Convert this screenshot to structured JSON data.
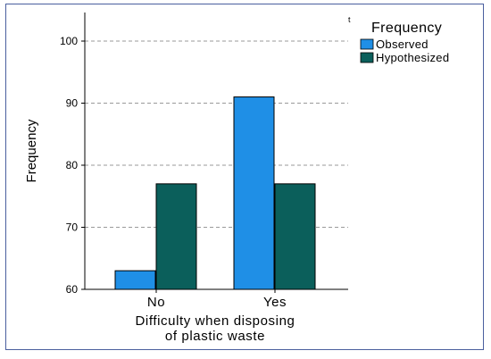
{
  "chart_data": {
    "type": "bar",
    "categories": [
      "No",
      "Yes"
    ],
    "series": [
      {
        "name": "Observed",
        "values": [
          63,
          91
        ],
        "color": "#1f8fe6"
      },
      {
        "name": "Hypothesized",
        "values": [
          77,
          77
        ],
        "color": "#0b5f5b"
      }
    ],
    "ylim": [
      60,
      100
    ],
    "yticks": [
      "60",
      "70",
      "80",
      "90",
      "100"
    ],
    "ylabel": "Frequency",
    "xlabel_lines": [
      "Difficulty when disposing",
      "of plastic waste"
    ],
    "legend_title": "Frequency",
    "legend_position": "top-right",
    "grid": "horizontal dashed",
    "stray_mark": "t"
  }
}
